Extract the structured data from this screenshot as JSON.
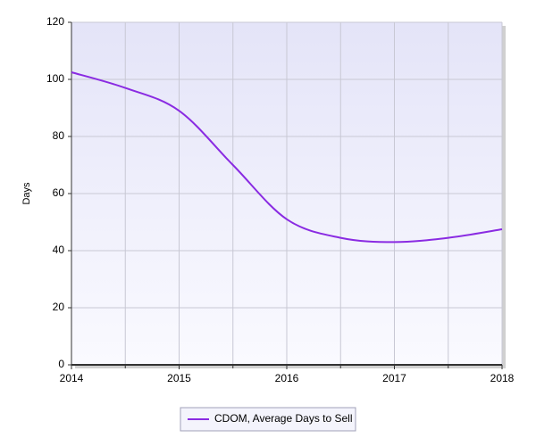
{
  "chart_data": {
    "type": "line",
    "y_label": "Days",
    "x": [
      2014,
      2014.5,
      2015,
      2015.5,
      2016,
      2016.5,
      2017,
      2017.5,
      2018
    ],
    "series": [
      {
        "name": "CDOM, Average Days to Sell",
        "color": "#8a2be2",
        "values": [
          102.5,
          97,
          89,
          70,
          51,
          44.5,
          43,
          44.5,
          47.5
        ]
      }
    ],
    "xlim": [
      2014,
      2018
    ],
    "xticks": [
      2014,
      2015,
      2016,
      2017,
      2018
    ],
    "ylim": [
      0,
      120
    ],
    "yticks": [
      0,
      20,
      40,
      60,
      80,
      100,
      120
    ],
    "grid": true,
    "legend": "bottom"
  }
}
